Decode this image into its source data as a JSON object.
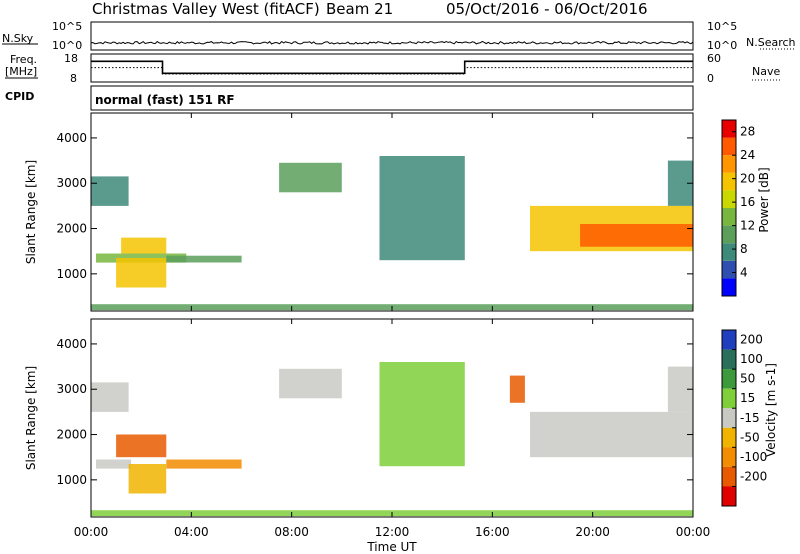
{
  "header": {
    "station": "Christmas Valley West (fitACF)",
    "beam": "Beam 21",
    "date_range": "05/Oct/2016 - 06/Oct/2016"
  },
  "strip_labels": {
    "nsky": "N.Sky",
    "nsearch": "N.Search",
    "freq": "Freq.",
    "freq_unit": "[MHz]",
    "nave": "Nave",
    "cpid": "CPID",
    "program": "normal (fast) 151 RF"
  },
  "colors": {
    "power_scale": [
      "#0000ff",
      "#2f4fb0",
      "#3e8a7a",
      "#5b9f5b",
      "#78b640",
      "#c8d800",
      "#f5c400",
      "#ff9600",
      "#ff5a00",
      "#e80000"
    ],
    "velocity_scale": [
      "#1f3fbf",
      "#2a6f5a",
      "#3c9a3c",
      "#7fcf3a",
      "#c9c9c4",
      "#f0b400",
      "#f28c00",
      "#e85a00",
      "#e00000"
    ]
  },
  "chart_data": [
    {
      "type": "line",
      "title": "Christmas Valley West (fitACF)",
      "panel": "noise",
      "left_label": "N.Sky",
      "right_label": "N.Search",
      "left_ticks": [
        "10^5",
        "10^0"
      ],
      "right_ticks": [
        "10^5",
        "10^0"
      ],
      "x": [
        0,
        4,
        8,
        12,
        16,
        20,
        24
      ],
      "xlim": [
        0,
        24
      ]
    },
    {
      "type": "line",
      "panel": "frequency",
      "ylabel": "Freq. [MHz]",
      "left_ticks": [
        "18",
        "8"
      ],
      "right_ticks": [
        "60",
        "0"
      ],
      "right_label": "Nave",
      "xlim": [
        0,
        24
      ],
      "series": [
        {
          "name": "Freq.",
          "x": [
            0,
            2.85,
            2.85,
            14.9,
            14.9,
            24
          ],
          "y": [
            15.8,
            15.8,
            10.8,
            10.8,
            15.8,
            15.8
          ]
        },
        {
          "name": "Nave",
          "x": [
            0,
            2.85,
            2.85,
            14.9,
            14.9,
            24
          ],
          "y": [
            31,
            31,
            15,
            15,
            31,
            31
          ]
        }
      ]
    },
    {
      "type": "heatmap",
      "panel": "power",
      "ylabel": "Slant Range [km]",
      "yticks": [
        1000,
        2000,
        3000,
        4000
      ],
      "ylim": [
        180,
        4550
      ],
      "xlim": [
        0,
        24
      ],
      "colorbar_label": "Power [dB]",
      "colorbar_ticks": [
        4,
        8,
        12,
        16,
        20,
        24,
        28
      ],
      "colorbar_range": [
        0,
        30
      ],
      "regions": [
        {
          "t0": 0.0,
          "t1": 24.0,
          "r0": 200,
          "r1": 330,
          "value": 9
        },
        {
          "t0": 0.0,
          "t1": 1.5,
          "r0": 2500,
          "r1": 3150,
          "value": 8
        },
        {
          "t0": 0.2,
          "t1": 3.8,
          "r0": 1250,
          "r1": 1450,
          "value": 12
        },
        {
          "t0": 1.2,
          "t1": 3.0,
          "r0": 1450,
          "r1": 1800,
          "value": 18
        },
        {
          "t0": 1.0,
          "t1": 3.0,
          "r0": 700,
          "r1": 1350,
          "value": 20
        },
        {
          "t0": 3.0,
          "t1": 6.0,
          "r0": 1250,
          "r1": 1400,
          "value": 10
        },
        {
          "t0": 7.5,
          "t1": 10.0,
          "r0": 2800,
          "r1": 3450,
          "value": 10
        },
        {
          "t0": 11.5,
          "t1": 14.9,
          "r0": 1300,
          "r1": 3600,
          "value": 8
        },
        {
          "t0": 17.5,
          "t1": 24.0,
          "r0": 1500,
          "r1": 2500,
          "value": 18
        },
        {
          "t0": 19.5,
          "t1": 24.0,
          "r0": 1600,
          "r1": 2100,
          "value": 26
        },
        {
          "t0": 23.0,
          "t1": 24.0,
          "r0": 2500,
          "r1": 3500,
          "value": 8
        }
      ]
    },
    {
      "type": "heatmap",
      "panel": "velocity",
      "xlabel": "Time UT",
      "ylabel": "Slant Range [km]",
      "xticks": [
        "00:00",
        "04:00",
        "08:00",
        "12:00",
        "16:00",
        "20:00",
        "00:00"
      ],
      "yticks": [
        1000,
        2000,
        3000,
        4000
      ],
      "ylim": [
        180,
        4550
      ],
      "xlim": [
        0,
        24
      ],
      "colorbar_label": "Velocity [m s-1]",
      "colorbar_ticks": [
        200,
        100,
        50,
        15,
        -15,
        -50,
        -100,
        -200
      ],
      "regions": [
        {
          "t0": 0.0,
          "t1": 24.0,
          "r0": 200,
          "r1": 330,
          "value": 30
        },
        {
          "t0": 0.0,
          "t1": 1.5,
          "r0": 2500,
          "r1": 3150,
          "value": 0
        },
        {
          "t0": 0.2,
          "t1": 1.6,
          "r0": 1250,
          "r1": 1450,
          "value": 0
        },
        {
          "t0": 1.0,
          "t1": 3.0,
          "r0": 1500,
          "r1": 2000,
          "value": -150
        },
        {
          "t0": 1.5,
          "t1": 3.0,
          "r0": 700,
          "r1": 1350,
          "value": -50
        },
        {
          "t0": 3.0,
          "t1": 6.0,
          "r0": 1250,
          "r1": 1450,
          "value": -100
        },
        {
          "t0": 7.5,
          "t1": 10.0,
          "r0": 2800,
          "r1": 3450,
          "value": 0
        },
        {
          "t0": 11.5,
          "t1": 14.9,
          "r0": 1300,
          "r1": 3600,
          "value": 20
        },
        {
          "t0": 16.7,
          "t1": 17.3,
          "r0": 2700,
          "r1": 3300,
          "value": -200
        },
        {
          "t0": 17.5,
          "t1": 24.0,
          "r0": 1500,
          "r1": 2500,
          "value": 0
        },
        {
          "t0": 23.0,
          "t1": 24.0,
          "r0": 2500,
          "r1": 3500,
          "value": 0
        }
      ]
    }
  ]
}
